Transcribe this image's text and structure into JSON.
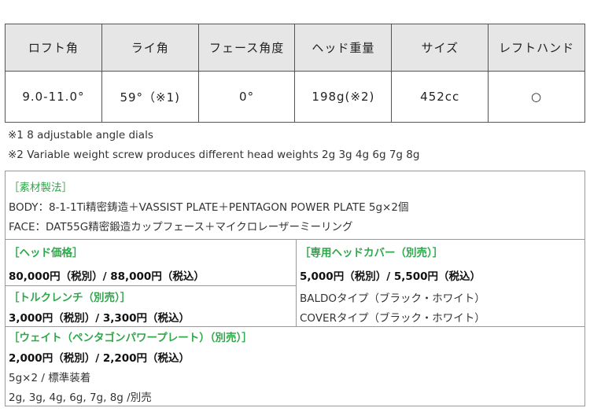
{
  "spec_table": {
    "headers": [
      "ロフト角",
      "ライ角",
      "フェース角度",
      "ヘッド重量",
      "サイズ",
      "レフトハンド"
    ],
    "values": [
      "9.0-11.0°",
      "59°（※1)",
      "0°",
      "198g(※2)",
      "452cc",
      "○"
    ]
  },
  "notes": [
    "※1  8 adjustable angle dials",
    "※2 Variable weight screw produces different head weights 2g 3g 4g 6g 7g 8g"
  ],
  "materials": {
    "title": "［素材製法］",
    "body": "BODY：8-1-1Ti精密鋳造＋VASSIST PLATE＋PENTAGON POWER PLATE 5g×2個",
    "face": "FACE：DAT55G精密鍛造カップフェース＋マイクロレーザーミーリング"
  },
  "head_price": {
    "title": "［ヘッド価格］",
    "price": "80,000円（税別）/ 88,000円（税込）"
  },
  "torque_wrench": {
    "title": "［トルクレンチ（別売）］",
    "price": "3,000円（税別）/ 3,300円（税込）"
  },
  "head_cover": {
    "title": "［専用ヘッドカバー（別売）］",
    "price": "5,000円（税別）/ 5,500円（税込）",
    "types": [
      "BALDOタイプ（ブラック・ホワイト）",
      "COVERタイプ（ブラック・ホワイト）"
    ]
  },
  "weight": {
    "title": "［ウェイト（ペンタゴンパワープレート）（別売）］",
    "price": "2,000円（税別）/ 2,200円（税込）",
    "standard": "5g×2 / 標準装着",
    "options": "2g, 3g, 4g, 6g, 7g, 8g /別売"
  },
  "colors": {
    "accent_green": "#2ea84a",
    "header_bg": "#e6e6e6"
  }
}
